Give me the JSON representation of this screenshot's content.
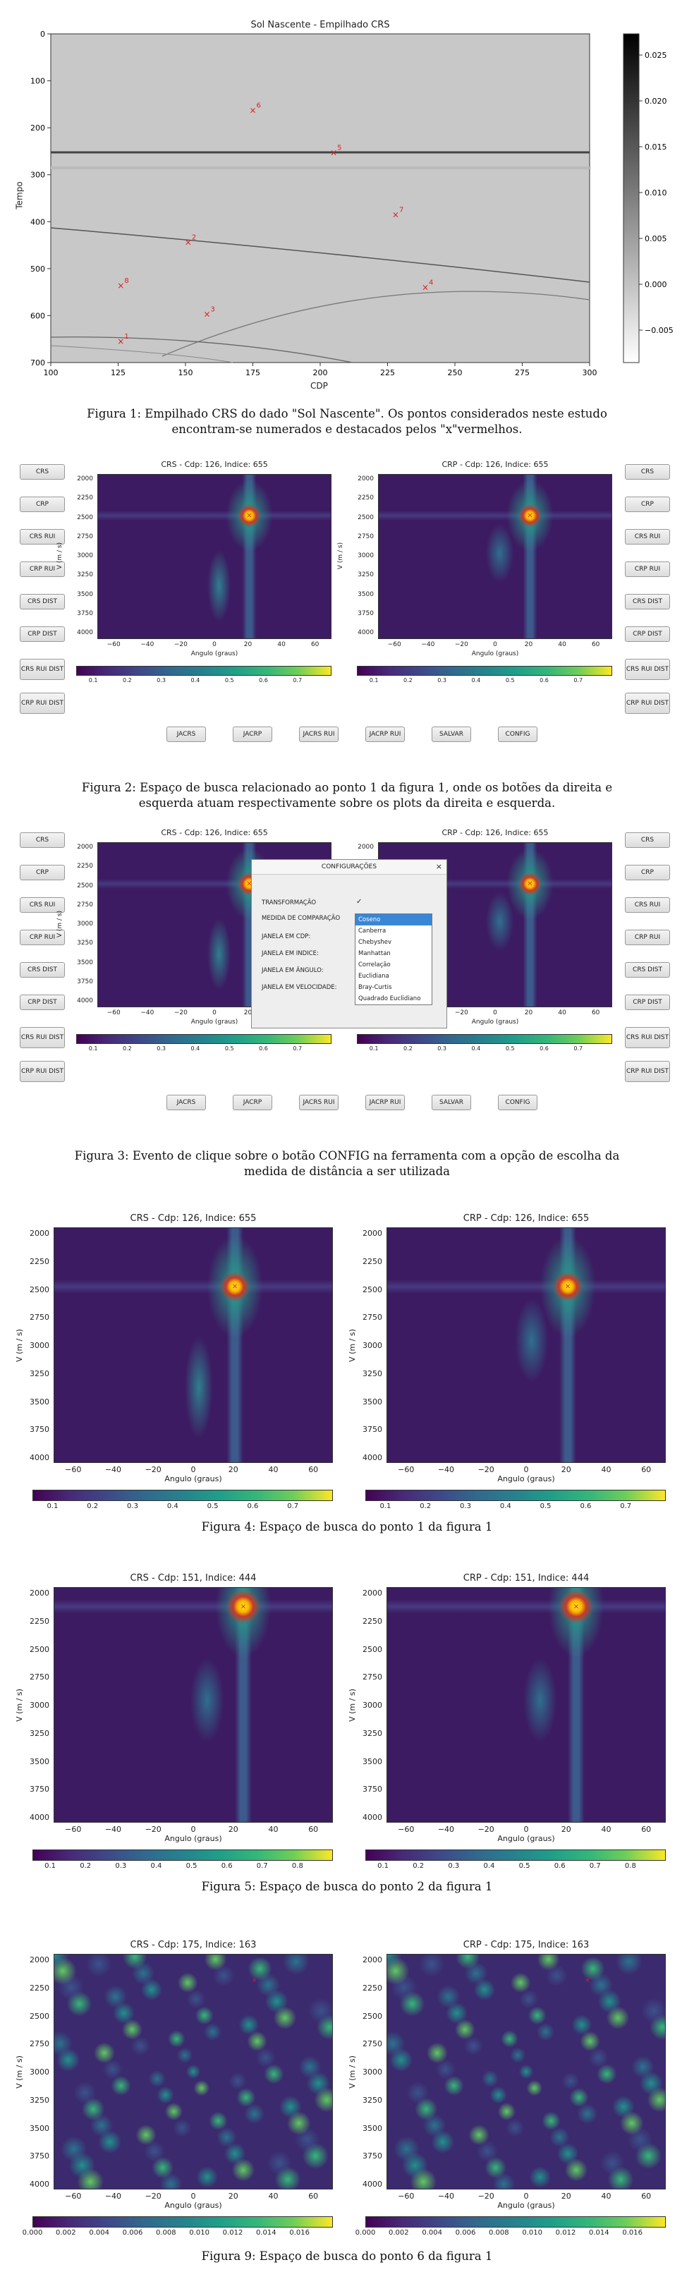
{
  "figure1": {
    "title": "Sol Nascente - Empilhado CRS",
    "xlabel": "CDP",
    "ylabel": "Tempo",
    "xticks": [
      "100",
      "125",
      "150",
      "175",
      "200",
      "225",
      "250",
      "275",
      "300"
    ],
    "yticks": [
      "0",
      "100",
      "200",
      "300",
      "400",
      "500",
      "600",
      "700"
    ],
    "cbar_ticks": [
      "0.025",
      "0.020",
      "0.015",
      "0.010",
      "0.005",
      "0.000",
      "−0.005"
    ],
    "points": [
      {
        "label": "1",
        "cdp": 126,
        "t": 655
      },
      {
        "label": "2",
        "cdp": 151,
        "t": 444
      },
      {
        "label": "3",
        "cdp": 158,
        "t": 597
      },
      {
        "label": "4",
        "cdp": 239,
        "t": 540
      },
      {
        "label": "5",
        "cdp": 205,
        "t": 253
      },
      {
        "label": "6",
        "cdp": 175,
        "t": 163
      },
      {
        "label": "7",
        "cdp": 228,
        "t": 385
      },
      {
        "label": "8",
        "cdp": 126,
        "t": 536
      }
    ],
    "caption_line1": "Figura 1: Empilhado CRS do dado \"Sol Nascente\". Os pontos considerados neste estudo",
    "caption_line2": "encontram-se numerados e destacados pelos \"x\"vermelhos."
  },
  "panels": {
    "crs_126": "CRS - Cdp: 126, Indice: 655",
    "crp_126": "CRP - Cdp: 126, Indice: 655",
    "crs_151": "CRS - Cdp: 151, Indice: 444",
    "crp_151": "CRP - Cdp: 151, Indice: 444",
    "crs_175": "CRS - Cdp: 175, Indice: 163",
    "crp_175": "CRP - Cdp: 175, Indice: 163",
    "xlabel": "Angulo (graus)",
    "ylabel": "V (m / s)",
    "xticks": [
      "−60",
      "−40",
      "−20",
      "0",
      "20",
      "40",
      "60"
    ],
    "yticks": [
      "2000",
      "2250",
      "2500",
      "2750",
      "3000",
      "3250",
      "3500",
      "3750",
      "4000"
    ],
    "cbar_a": [
      "0.1",
      "0.2",
      "0.3",
      "0.4",
      "0.5",
      "0.6",
      "0.7"
    ],
    "cbar_b": [
      "0.1",
      "0.2",
      "0.3",
      "0.4",
      "0.5",
      "0.6",
      "0.7",
      "0.8"
    ],
    "cbar_c_left": [
      "0.000",
      "0.002",
      "0.004",
      "0.006",
      "0.008",
      "0.010",
      "0.012",
      "0.014",
      "0.016"
    ],
    "cbar_c_right": [
      "0.000",
      "0.002",
      "0.004",
      "0.006",
      "0.008",
      "0.010",
      "0.012",
      "0.014",
      "0.016"
    ]
  },
  "tool": {
    "left_buttons": [
      "CRS",
      "CRP",
      "CRS RUI",
      "CRP RUI",
      "CRS DIST",
      "CRP DIST",
      "CRS RUI DIST",
      "CRP RUI DIST"
    ],
    "right_buttons": [
      "CRS",
      "CRP",
      "CRS RUI",
      "CRP RUI",
      "CRS DIST",
      "CRP DIST",
      "CRS RUI DIST",
      "CRP RUI DIST"
    ],
    "bottom_buttons": [
      "JACRS",
      "JACRP",
      "JACRS RUI",
      "JACRP RUI",
      "SALVAR",
      "CONFIG"
    ]
  },
  "dialog": {
    "title": "CONFIGURAÇÕES",
    "close": "×",
    "rows": [
      "TRANSFORMAÇÃO",
      "MEDIDA DE COMPARAÇÃO",
      "JANELA EM CDP:",
      "JANELA EM INDICE:",
      "JANELA EM ÂNGULO:",
      "JANELA EM VELOCIDADE:"
    ],
    "check": "✓",
    "options": [
      "Coseno",
      "Canberra",
      "Chebyshev",
      "Manhattan",
      "Correlação",
      "Euclidiana",
      "Bray-Curtis",
      "Quadrado Euclidiano"
    ],
    "selected": "Coseno"
  },
  "captions": {
    "fig2_l1": "Figura 2: Espaço de busca relacionado ao ponto 1 da figura 1, onde os botões da direita e",
    "fig2_l2": "esquerda atuam respectivamente sobre os plots da direita e esquerda.",
    "fig3_l1": "Figura 3: Evento de clique sobre o botão CONFIG na ferramenta com a opção de escolha da",
    "fig3_l2": "medida de distância a ser utilizada",
    "fig4": "Figura 4: Espaço de busca do ponto 1 da figura 1",
    "fig5": "Figura 5: Espaço de busca do ponto 2 da figura 1",
    "fig9": "Figura 9: Espaço de busca do ponto 6 da figura 1"
  },
  "colors": {
    "marker": "#e31a1c",
    "viridis_dark": "#440154",
    "viridis_mid": "#21918c",
    "viridis_bright": "#fde725"
  }
}
